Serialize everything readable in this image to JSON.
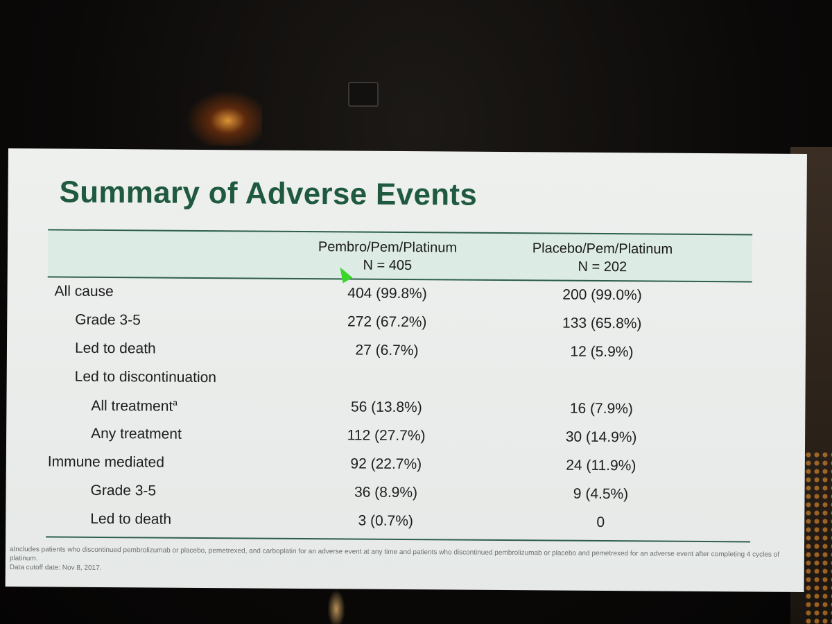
{
  "slide": {
    "title": "Summary of Adverse Events",
    "columns": [
      {
        "name": "Pembro/Pem/Platinum",
        "n": "N = 405"
      },
      {
        "name": "Placebo/Pem/Platinum",
        "n": "N = 202"
      }
    ],
    "rows": [
      {
        "label": "All cause",
        "a": "404 (99.8%)",
        "b": "200 (99.0%)"
      },
      {
        "label": "Grade 3-5",
        "a": "272 (67.2%)",
        "b": "133 (65.8%)"
      },
      {
        "label": "Led to death",
        "a": "27 (6.7%)",
        "b": "12 (5.9%)"
      },
      {
        "label": "Led to discontinuation",
        "a": "",
        "b": ""
      },
      {
        "label": "All treatment",
        "sup": "a",
        "a": "56 (13.8%)",
        "b": "16 (7.9%)"
      },
      {
        "label": "Any treatment",
        "a": "112 (27.7%)",
        "b": "30 (14.9%)"
      },
      {
        "label": "Immune mediated",
        "a": "92 (22.7%)",
        "b": "24 (11.9%)"
      },
      {
        "label": "Grade 3-5",
        "a": "36 (8.9%)",
        "b": "9 (4.5%)"
      },
      {
        "label": "Led to death",
        "a": "3 (0.7%)",
        "b": "0"
      }
    ],
    "footnote_a": "aIncludes patients who discontinued pembrolizumab or placebo, pemetrexed, and carboplatin for an adverse event at any time and patients who discontinued pembrolizumab or placebo and pemetrexed for an adverse event after completing 4 cycles of platinum.",
    "footnote_cutoff": "Data cutoff date: Nov 8, 2017."
  },
  "colors": {
    "title": "#1f5a40",
    "header_fill": "#dcebe4",
    "rule": "#2c5e4a",
    "cursor": "#3bd62a"
  },
  "icons": {
    "cursor": "arrow-cursor-icon"
  }
}
